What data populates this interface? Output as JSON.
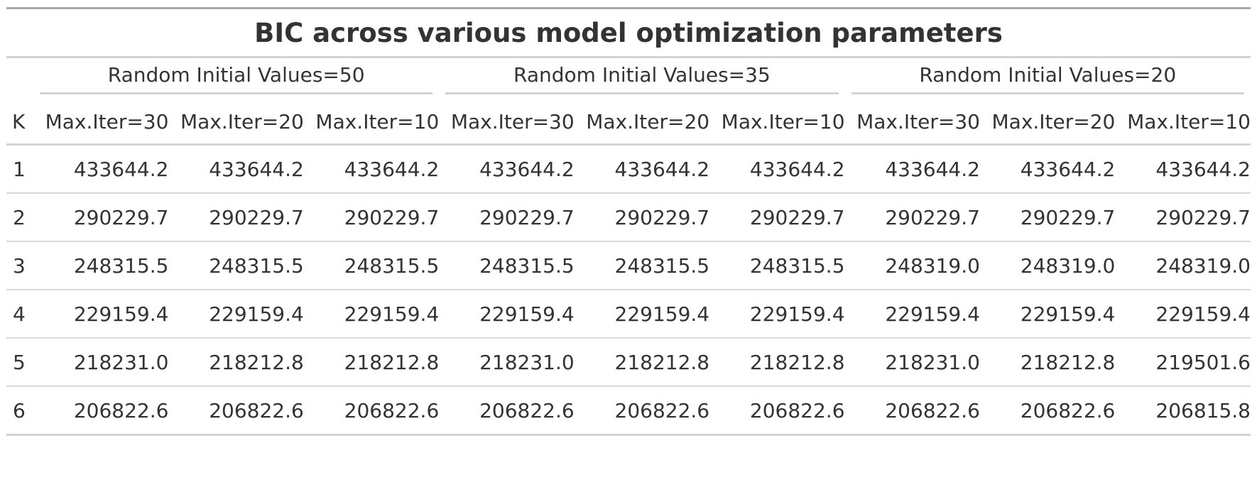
{
  "chart_data": {
    "type": "table",
    "title": "BIC across various model optimization parameters",
    "row_header": "K",
    "groups": [
      {
        "label": "Random Initial Values=50",
        "columns": [
          "Max.Iter=30",
          "Max.Iter=20",
          "Max.Iter=10"
        ]
      },
      {
        "label": "Random Initial Values=35",
        "columns": [
          "Max.Iter=30",
          "Max.Iter=20",
          "Max.Iter=10"
        ]
      },
      {
        "label": "Random Initial Values=20",
        "columns": [
          "Max.Iter=30",
          "Max.Iter=20",
          "Max.Iter=10"
        ]
      }
    ],
    "rows": [
      {
        "k": "1",
        "values": [
          "433644.2",
          "433644.2",
          "433644.2",
          "433644.2",
          "433644.2",
          "433644.2",
          "433644.2",
          "433644.2",
          "433644.2"
        ]
      },
      {
        "k": "2",
        "values": [
          "290229.7",
          "290229.7",
          "290229.7",
          "290229.7",
          "290229.7",
          "290229.7",
          "290229.7",
          "290229.7",
          "290229.7"
        ]
      },
      {
        "k": "3",
        "values": [
          "248315.5",
          "248315.5",
          "248315.5",
          "248315.5",
          "248315.5",
          "248315.5",
          "248319.0",
          "248319.0",
          "248319.0"
        ]
      },
      {
        "k": "4",
        "values": [
          "229159.4",
          "229159.4",
          "229159.4",
          "229159.4",
          "229159.4",
          "229159.4",
          "229159.4",
          "229159.4",
          "229159.4"
        ]
      },
      {
        "k": "5",
        "values": [
          "218231.0",
          "218212.8",
          "218212.8",
          "218231.0",
          "218212.8",
          "218212.8",
          "218231.0",
          "218212.8",
          "219501.6"
        ]
      },
      {
        "k": "6",
        "values": [
          "206822.6",
          "206822.6",
          "206822.6",
          "206822.6",
          "206822.6",
          "206822.6",
          "206822.6",
          "206822.6",
          "206815.8"
        ]
      }
    ]
  }
}
